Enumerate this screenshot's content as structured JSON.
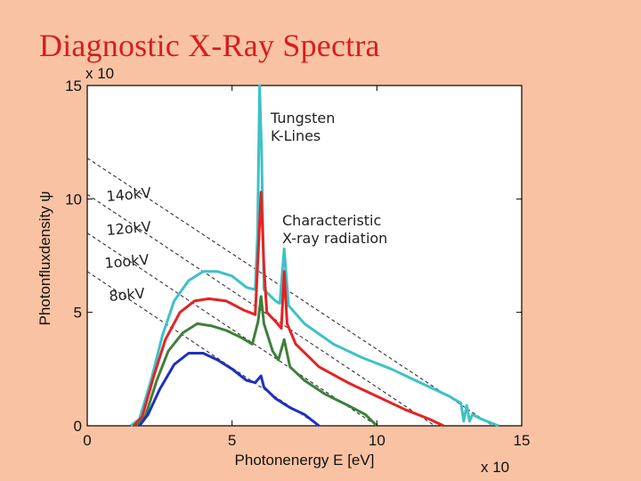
{
  "slide": {
    "title": "Diagnostic X-Ray Spectra"
  },
  "colors": {
    "background": "#f9c3a3",
    "title": "#d41f1f",
    "kv140": "#3ec1c8",
    "kv120": "#e52222",
    "kv100": "#3f7f3a",
    "kv80": "#1f2fc0"
  },
  "chart_data": {
    "type": "line",
    "title": "",
    "xlabel": "Photonenergy E [eV]",
    "ylabel": "Photonfluxdensity ψ",
    "x_multiplier": "x 10",
    "y_multiplier": "x 10",
    "xlim": [
      0,
      15
    ],
    "ylim": [
      0,
      15
    ],
    "xticks": [
      "0",
      "5",
      "10",
      "15"
    ],
    "yticks": [
      "0",
      "5",
      "10",
      "15"
    ],
    "series": [
      {
        "name": "140kV",
        "color": "#3ec1c8",
        "points": [
          [
            1.5,
            0
          ],
          [
            1.8,
            0.3
          ],
          [
            2.2,
            2.0
          ],
          [
            2.6,
            4.0
          ],
          [
            3.0,
            5.5
          ],
          [
            3.5,
            6.4
          ],
          [
            4.0,
            6.8
          ],
          [
            4.5,
            6.8
          ],
          [
            5.0,
            6.6
          ],
          [
            5.5,
            6.1
          ],
          [
            5.8,
            6.0
          ],
          [
            5.88,
            8.5
          ],
          [
            5.95,
            15.0
          ],
          [
            6.02,
            12.0
          ],
          [
            6.1,
            6.0
          ],
          [
            6.5,
            5.5
          ],
          [
            6.65,
            5.4
          ],
          [
            6.8,
            7.8
          ],
          [
            6.95,
            5.3
          ],
          [
            7.5,
            4.5
          ],
          [
            8.5,
            3.6
          ],
          [
            9.5,
            3.0
          ],
          [
            10.5,
            2.5
          ],
          [
            11.5,
            1.9
          ],
          [
            12.5,
            1.3
          ],
          [
            12.9,
            1.0
          ],
          [
            13.0,
            0.2
          ],
          [
            13.1,
            0.9
          ],
          [
            13.2,
            0.2
          ],
          [
            13.3,
            0.5
          ],
          [
            13.6,
            0.3
          ],
          [
            14.2,
            0
          ]
        ]
      },
      {
        "name": "120kV",
        "color": "#e52222",
        "points": [
          [
            1.6,
            0
          ],
          [
            1.9,
            0.4
          ],
          [
            2.3,
            2.2
          ],
          [
            2.7,
            3.8
          ],
          [
            3.2,
            5.0
          ],
          [
            3.7,
            5.5
          ],
          [
            4.2,
            5.6
          ],
          [
            4.8,
            5.5
          ],
          [
            5.4,
            5.1
          ],
          [
            5.8,
            4.9
          ],
          [
            5.9,
            7.5
          ],
          [
            6.0,
            10.3
          ],
          [
            6.1,
            7.0
          ],
          [
            6.2,
            5.0
          ],
          [
            6.5,
            4.6
          ],
          [
            6.7,
            4.3
          ],
          [
            6.8,
            6.8
          ],
          [
            6.9,
            4.5
          ],
          [
            7.2,
            3.6
          ],
          [
            8.0,
            2.6
          ],
          [
            9.0,
            1.9
          ],
          [
            10.0,
            1.3
          ],
          [
            11.0,
            0.7
          ],
          [
            11.8,
            0.3
          ],
          [
            12.3,
            0
          ]
        ]
      },
      {
        "name": "100kV",
        "color": "#3f7f3a",
        "points": [
          [
            1.7,
            0
          ],
          [
            2.0,
            0.4
          ],
          [
            2.4,
            2.0
          ],
          [
            2.8,
            3.3
          ],
          [
            3.3,
            4.1
          ],
          [
            3.8,
            4.5
          ],
          [
            4.3,
            4.4
          ],
          [
            4.8,
            4.2
          ],
          [
            5.3,
            3.9
          ],
          [
            5.7,
            3.6
          ],
          [
            5.9,
            4.6
          ],
          [
            6.0,
            5.7
          ],
          [
            6.1,
            4.5
          ],
          [
            6.4,
            3.3
          ],
          [
            6.6,
            2.9
          ],
          [
            6.8,
            3.8
          ],
          [
            7.0,
            2.6
          ],
          [
            7.5,
            2.0
          ],
          [
            8.2,
            1.4
          ],
          [
            9.0,
            0.9
          ],
          [
            9.6,
            0.5
          ],
          [
            10.0,
            0
          ]
        ]
      },
      {
        "name": "80kV",
        "color": "#1f2fc0",
        "points": [
          [
            1.8,
            0
          ],
          [
            2.1,
            0.5
          ],
          [
            2.5,
            1.6
          ],
          [
            3.0,
            2.7
          ],
          [
            3.5,
            3.2
          ],
          [
            4.0,
            3.2
          ],
          [
            4.5,
            2.9
          ],
          [
            5.0,
            2.5
          ],
          [
            5.5,
            2.0
          ],
          [
            5.8,
            1.9
          ],
          [
            6.0,
            2.2
          ],
          [
            6.1,
            1.7
          ],
          [
            6.5,
            1.2
          ],
          [
            7.0,
            0.8
          ],
          [
            7.5,
            0.5
          ],
          [
            7.8,
            0.2
          ],
          [
            8.0,
            0
          ]
        ]
      }
    ],
    "limit_lines": [
      {
        "name": "140kV",
        "from": [
          0,
          11.8
        ],
        "to": [
          14.0,
          0
        ]
      },
      {
        "name": "120kV",
        "from": [
          0,
          10.2
        ],
        "to": [
          12.0,
          0
        ]
      },
      {
        "name": "100kV",
        "from": [
          0,
          8.5
        ],
        "to": [
          10.0,
          0
        ]
      },
      {
        "name": "80kV",
        "from": [
          0,
          6.8
        ],
        "to": [
          8.0,
          0
        ]
      }
    ],
    "annotations": {
      "tungsten_line1": "Tungsten",
      "tungsten_line2": "K-Lines",
      "characteristic_line1": "Characteristic",
      "characteristic_line2": "X-ray radiation",
      "kv_labels": [
        "14okV",
        "12okV",
        "1ookV",
        "8okV"
      ]
    }
  }
}
